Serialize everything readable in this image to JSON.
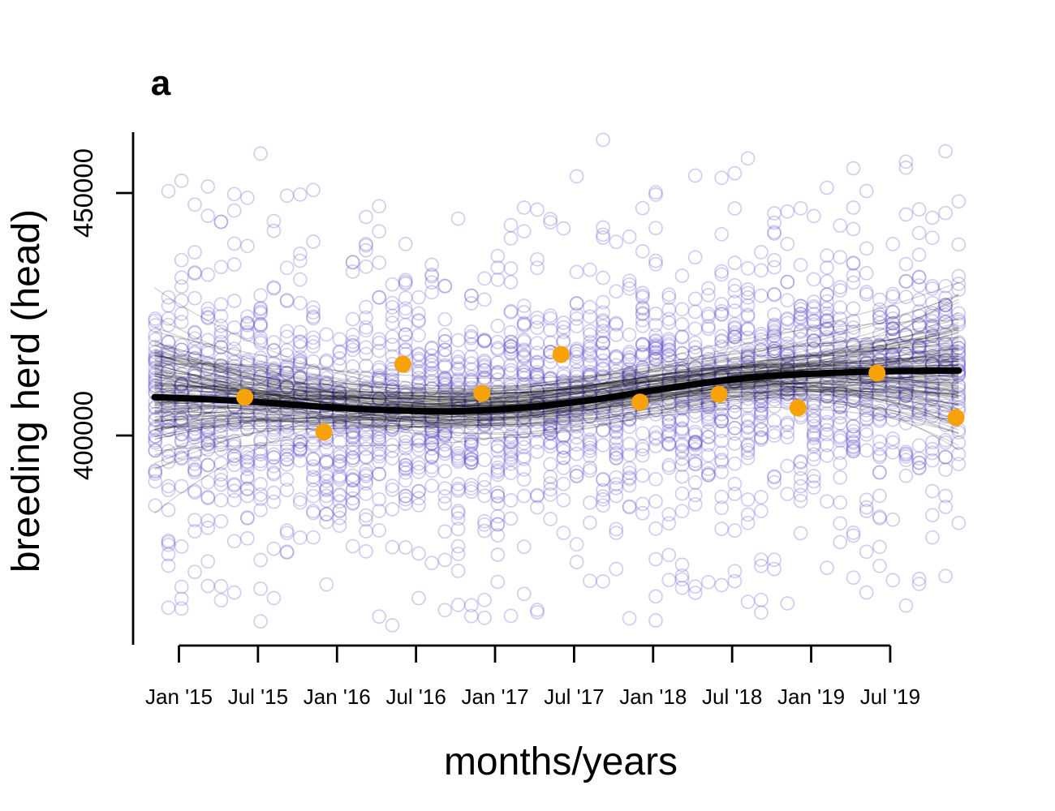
{
  "panel_label": "a",
  "background": "#ffffff",
  "chart_data": {
    "type": "scatter",
    "title": "",
    "xlabel": "months/years",
    "ylabel": "breeding herd (head)",
    "x_tick_labels": [
      "Jan '15",
      "Jul '15",
      "Jan '16",
      "Jul '16",
      "Jan '17",
      "Jul '17",
      "Jan '18",
      "Jul '18",
      "Jan '19",
      "Jul '19"
    ],
    "x_tick_months": [
      0,
      6,
      12,
      18,
      24,
      30,
      36,
      42,
      48,
      54
    ],
    "y_tick_labels": [
      "400000",
      "450000"
    ],
    "y_ticks": [
      400000,
      450000
    ],
    "ylim": [
      360000,
      462500
    ],
    "xlim_months": [
      -3.5,
      60.5
    ],
    "grid": false,
    "legend": "none",
    "axis_color": "#000000",
    "mean_trend": {
      "description": "thick black fitted mean curve",
      "color": "#000000",
      "months": [
        -1.85,
        2,
        6,
        11,
        16,
        21,
        26,
        31,
        36,
        41,
        45.5,
        50.5,
        55,
        59.2
      ],
      "values": [
        407900,
        407500,
        406900,
        405900,
        405200,
        405000,
        405700,
        407200,
        409300,
        411200,
        412400,
        413000,
        413300,
        413400
      ]
    },
    "observed_points": {
      "description": "orange observed census points (semi-annual)",
      "color": "#F6A208",
      "months": [
        5,
        11,
        17,
        23,
        29,
        35,
        41,
        47,
        53,
        59
      ],
      "values": [
        407900,
        400700,
        414700,
        408700,
        416700,
        406900,
        408500,
        405700,
        412900,
        403700
      ]
    },
    "posterior_lines": {
      "description": "thin black posterior-draw trend curves forming a band around the mean",
      "count": 120,
      "color": "#000000",
      "opacity": 0.2
    },
    "posterior_cloud": {
      "description": "open slate-blue circles: posterior predictive draws in monthly columns",
      "color": "#6A5ACD",
      "opacity": 0.3,
      "first_month": -1.8,
      "n_columns": 62,
      "points_per_column": 42,
      "sigma_core": 9000,
      "sigma_wide": 18000,
      "tail_range": [
        -50000,
        46000
      ],
      "value_clamp": [
        360200,
        461800
      ]
    }
  }
}
